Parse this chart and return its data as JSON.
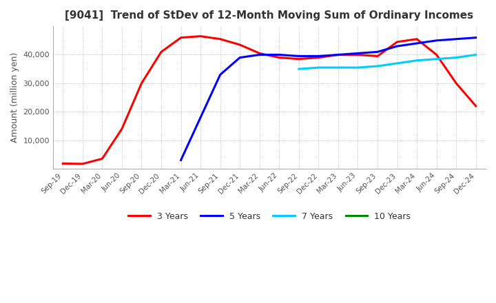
{
  "title": "[9041]  Trend of StDev of 12-Month Moving Sum of Ordinary Incomes",
  "ylabel": "Amount (million yen)",
  "ylim": [
    0,
    50000
  ],
  "yticks": [
    10000,
    20000,
    30000,
    40000
  ],
  "background_color": "#ffffff",
  "grid_color": "#aaaaaa",
  "legend": [
    "3 Years",
    "5 Years",
    "7 Years",
    "10 Years"
  ],
  "line_colors": [
    "#ff0000",
    "#0000ff",
    "#00ccff",
    "#008800"
  ],
  "x_labels": [
    "Sep-19",
    "Dec-19",
    "Mar-20",
    "Jun-20",
    "Sep-20",
    "Dec-20",
    "Mar-21",
    "Jun-21",
    "Sep-21",
    "Dec-21",
    "Mar-22",
    "Jun-22",
    "Sep-22",
    "Dec-22",
    "Mar-23",
    "Jun-23",
    "Sep-23",
    "Dec-23",
    "Mar-24",
    "Jun-24",
    "Sep-24",
    "Dec-24"
  ],
  "series_3y": [
    1800,
    1700,
    3500,
    14000,
    30000,
    41000,
    46000,
    46500,
    45500,
    43500,
    40500,
    39000,
    38500,
    39000,
    40000,
    40000,
    39500,
    44500,
    45500,
    40000,
    30000,
    22000
  ],
  "series_5y": [
    null,
    null,
    null,
    null,
    null,
    null,
    3000,
    18000,
    33000,
    39000,
    40000,
    40000,
    39500,
    39500,
    40000,
    40500,
    41000,
    43000,
    44000,
    45000,
    45500,
    46000
  ],
  "series_7y": [
    null,
    null,
    null,
    null,
    null,
    null,
    null,
    null,
    null,
    null,
    null,
    null,
    35000,
    35500,
    35500,
    35500,
    36000,
    37000,
    38000,
    38500,
    39000,
    40000
  ],
  "series_10y": [
    null,
    null,
    null,
    null,
    null,
    null,
    null,
    null,
    null,
    null,
    null,
    null,
    null,
    null,
    null,
    null,
    null,
    null,
    null,
    null,
    null,
    null
  ]
}
